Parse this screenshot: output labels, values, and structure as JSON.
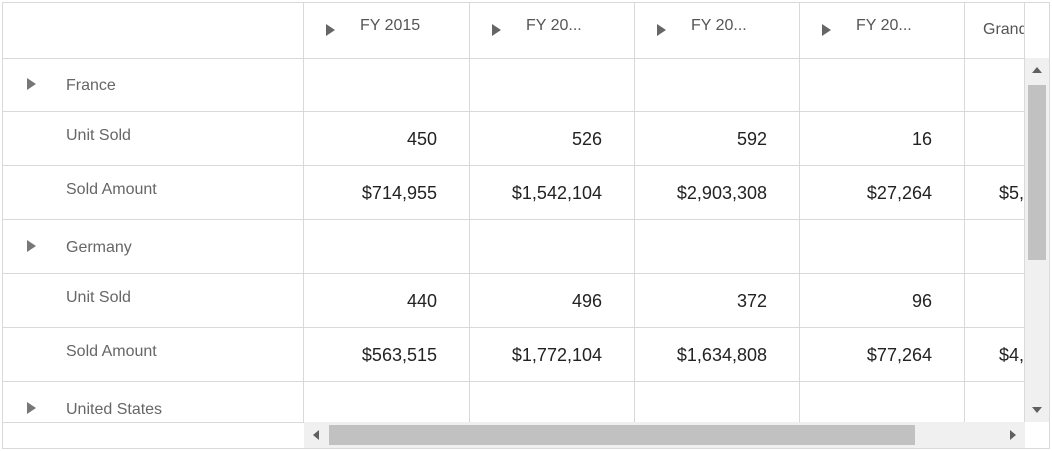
{
  "header": {
    "columns": [
      {
        "label": "FY 2015",
        "expandable": true
      },
      {
        "label": "FY 20...",
        "expandable": true
      },
      {
        "label": "FY 20...",
        "expandable": true
      },
      {
        "label": "FY 20...",
        "expandable": true
      },
      {
        "label": "Grand Total",
        "expandable": false
      }
    ]
  },
  "rows": [
    {
      "type": "group",
      "label": "France",
      "values": [
        "",
        "",
        "",
        "",
        ""
      ]
    },
    {
      "type": "measure",
      "label": "Unit Sold",
      "values": [
        "450",
        "526",
        "592",
        "16",
        ""
      ]
    },
    {
      "type": "measure",
      "label": "Sold Amount",
      "values": [
        "$714,955",
        "$1,542,104",
        "$2,903,308",
        "$27,264",
        "$5,"
      ]
    },
    {
      "type": "group",
      "label": "Germany",
      "values": [
        "",
        "",
        "",
        "",
        ""
      ]
    },
    {
      "type": "measure",
      "label": "Unit Sold",
      "values": [
        "440",
        "496",
        "372",
        "96",
        ""
      ]
    },
    {
      "type": "measure",
      "label": "Sold Amount",
      "values": [
        "$563,515",
        "$1,772,104",
        "$1,634,808",
        "$77,264",
        "$4,"
      ]
    },
    {
      "type": "group",
      "label": "United States",
      "values": [
        "",
        "",
        "",
        "",
        ""
      ]
    }
  ],
  "colors": {
    "border": "#d9d9d9",
    "scroll_track": "#f0f0f0",
    "scroll_thumb": "#c1c1c1"
  },
  "icons": {
    "expand": "caret-right-icon",
    "scroll_up": "arrow-up-icon",
    "scroll_down": "arrow-down-icon",
    "scroll_left": "arrow-left-icon",
    "scroll_right": "arrow-right-icon"
  }
}
